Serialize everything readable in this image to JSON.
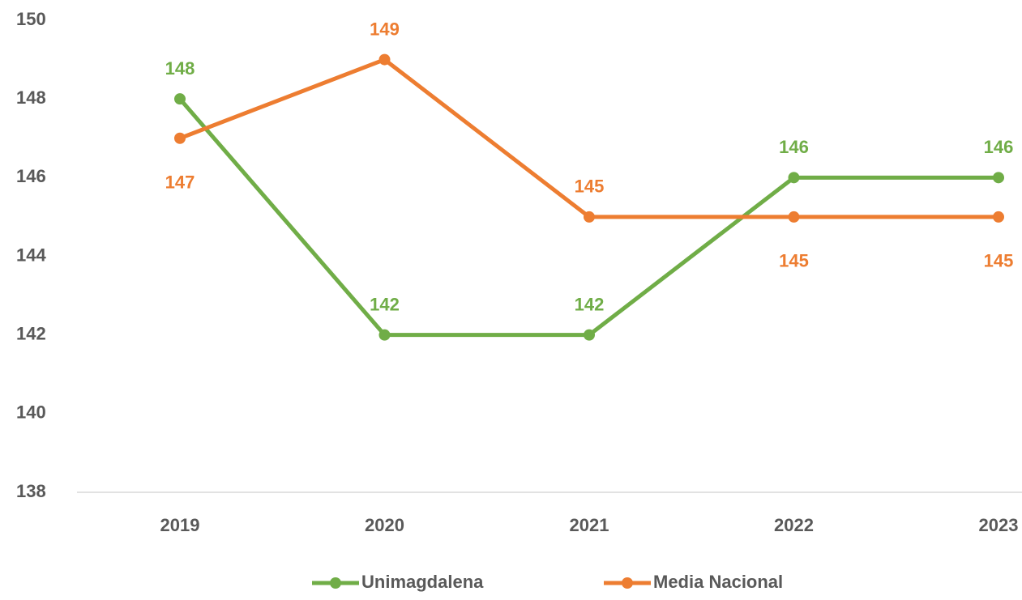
{
  "chart_data": {
    "type": "line",
    "categories": [
      "2019",
      "2020",
      "2021",
      "2022",
      "2023"
    ],
    "series": [
      {
        "name": "Unimagdalena",
        "color": "#70ad47",
        "values": [
          148,
          142,
          142,
          146,
          146
        ]
      },
      {
        "name": "Media Nacional",
        "color": "#ed7d31",
        "values": [
          147,
          149,
          145,
          145,
          145
        ]
      }
    ],
    "ylim": [
      138,
      150
    ],
    "yticks": [
      138,
      140,
      142,
      144,
      146,
      148,
      150
    ],
    "legend": "bottom"
  }
}
